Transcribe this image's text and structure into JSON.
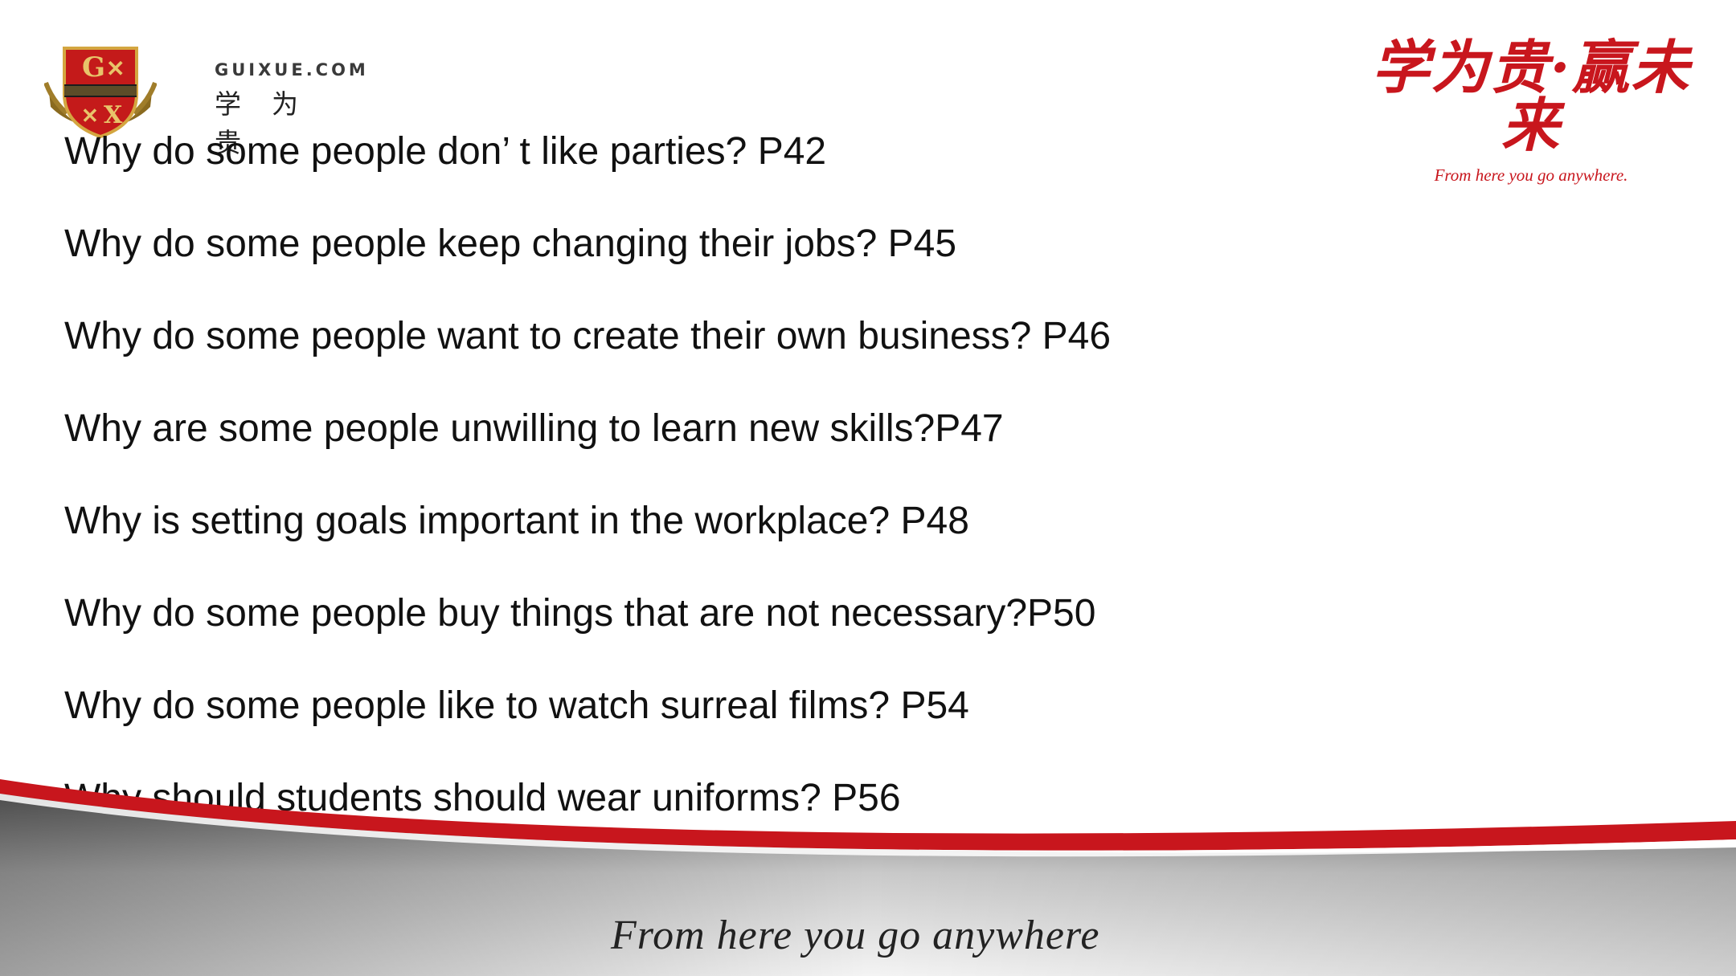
{
  "logo": {
    "domain": "GUIXUE.COM",
    "chinese": "学为贵"
  },
  "slogan": {
    "chinese": "学为贵·赢未来",
    "english": "From here you go anywhere."
  },
  "questions": [
    "Why do some people don’ t like parties? P42",
    "Why do some people keep changing their jobs? P45",
    "Why do some people want to create their own business? P46",
    "Why are some people unwilling to learn new skills?P47",
    "Why is setting goals important in the workplace? P48",
    "Why do some people buy things that are not necessary?P50",
    "Why do some people like to watch surreal films? P54",
    "Why should students should wear uniforms? P56"
  ],
  "footer": {
    "tagline": "From here you go anywhere"
  },
  "colors": {
    "brand_red": "#c8161d",
    "text": "#111111"
  }
}
